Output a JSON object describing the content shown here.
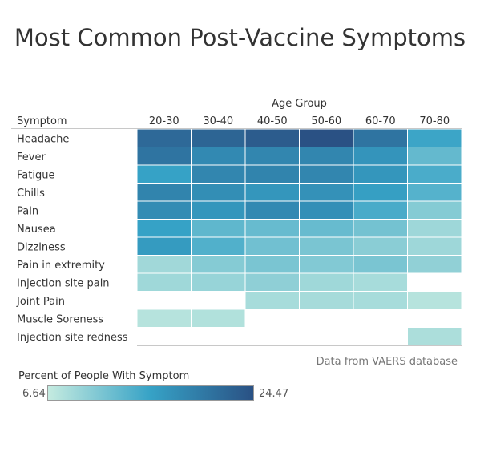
{
  "chart_data": {
    "type": "heatmap",
    "title": "Most Common Post-Vaccine Symptoms",
    "column_header": "Age Group",
    "row_header": "Symptom",
    "columns": [
      "20-30",
      "30-40",
      "40-50",
      "50-60",
      "60-70",
      "70-80"
    ],
    "rows": [
      "Headache",
      "Fever",
      "Fatigue",
      "Chills",
      "Pain",
      "Nausea",
      "Dizziness",
      "Pain in extremity",
      "Injection site pain",
      "Joint Pain",
      "Muscle Soreness",
      "Injection site redness"
    ],
    "values": [
      [
        21.8,
        22.3,
        23.3,
        24.47,
        20.6,
        15.2
      ],
      [
        20.6,
        18.3,
        18.6,
        18.6,
        17.1,
        12.7
      ],
      [
        15.6,
        18.6,
        18.9,
        18.6,
        16.9,
        14.3
      ],
      [
        18.9,
        17.8,
        16.9,
        17.4,
        15.9,
        13.6
      ],
      [
        18.0,
        16.9,
        18.3,
        17.6,
        14.4,
        10.6
      ],
      [
        15.6,
        13.0,
        12.5,
        12.5,
        11.7,
        9.1
      ],
      [
        16.3,
        13.9,
        11.9,
        11.3,
        10.3,
        9.1
      ],
      [
        8.9,
        10.6,
        11.3,
        10.8,
        11.3,
        9.9
      ],
      [
        9.0,
        9.5,
        10.0,
        9.0,
        8.5,
        null
      ],
      [
        null,
        null,
        8.5,
        8.6,
        8.5,
        7.6
      ],
      [
        7.6,
        7.9,
        null,
        null,
        null,
        null
      ],
      [
        null,
        null,
        null,
        null,
        null,
        8.2
      ]
    ],
    "color_scale": {
      "title": "Percent of People With Symptom",
      "min": 6.64,
      "max": 24.47,
      "min_label": "6.64",
      "max_label": "24.47",
      "colors": [
        "#c5ebe0",
        "#36a2c6",
        "#2a5184"
      ]
    },
    "source_note": "Data from VAERS database"
  }
}
